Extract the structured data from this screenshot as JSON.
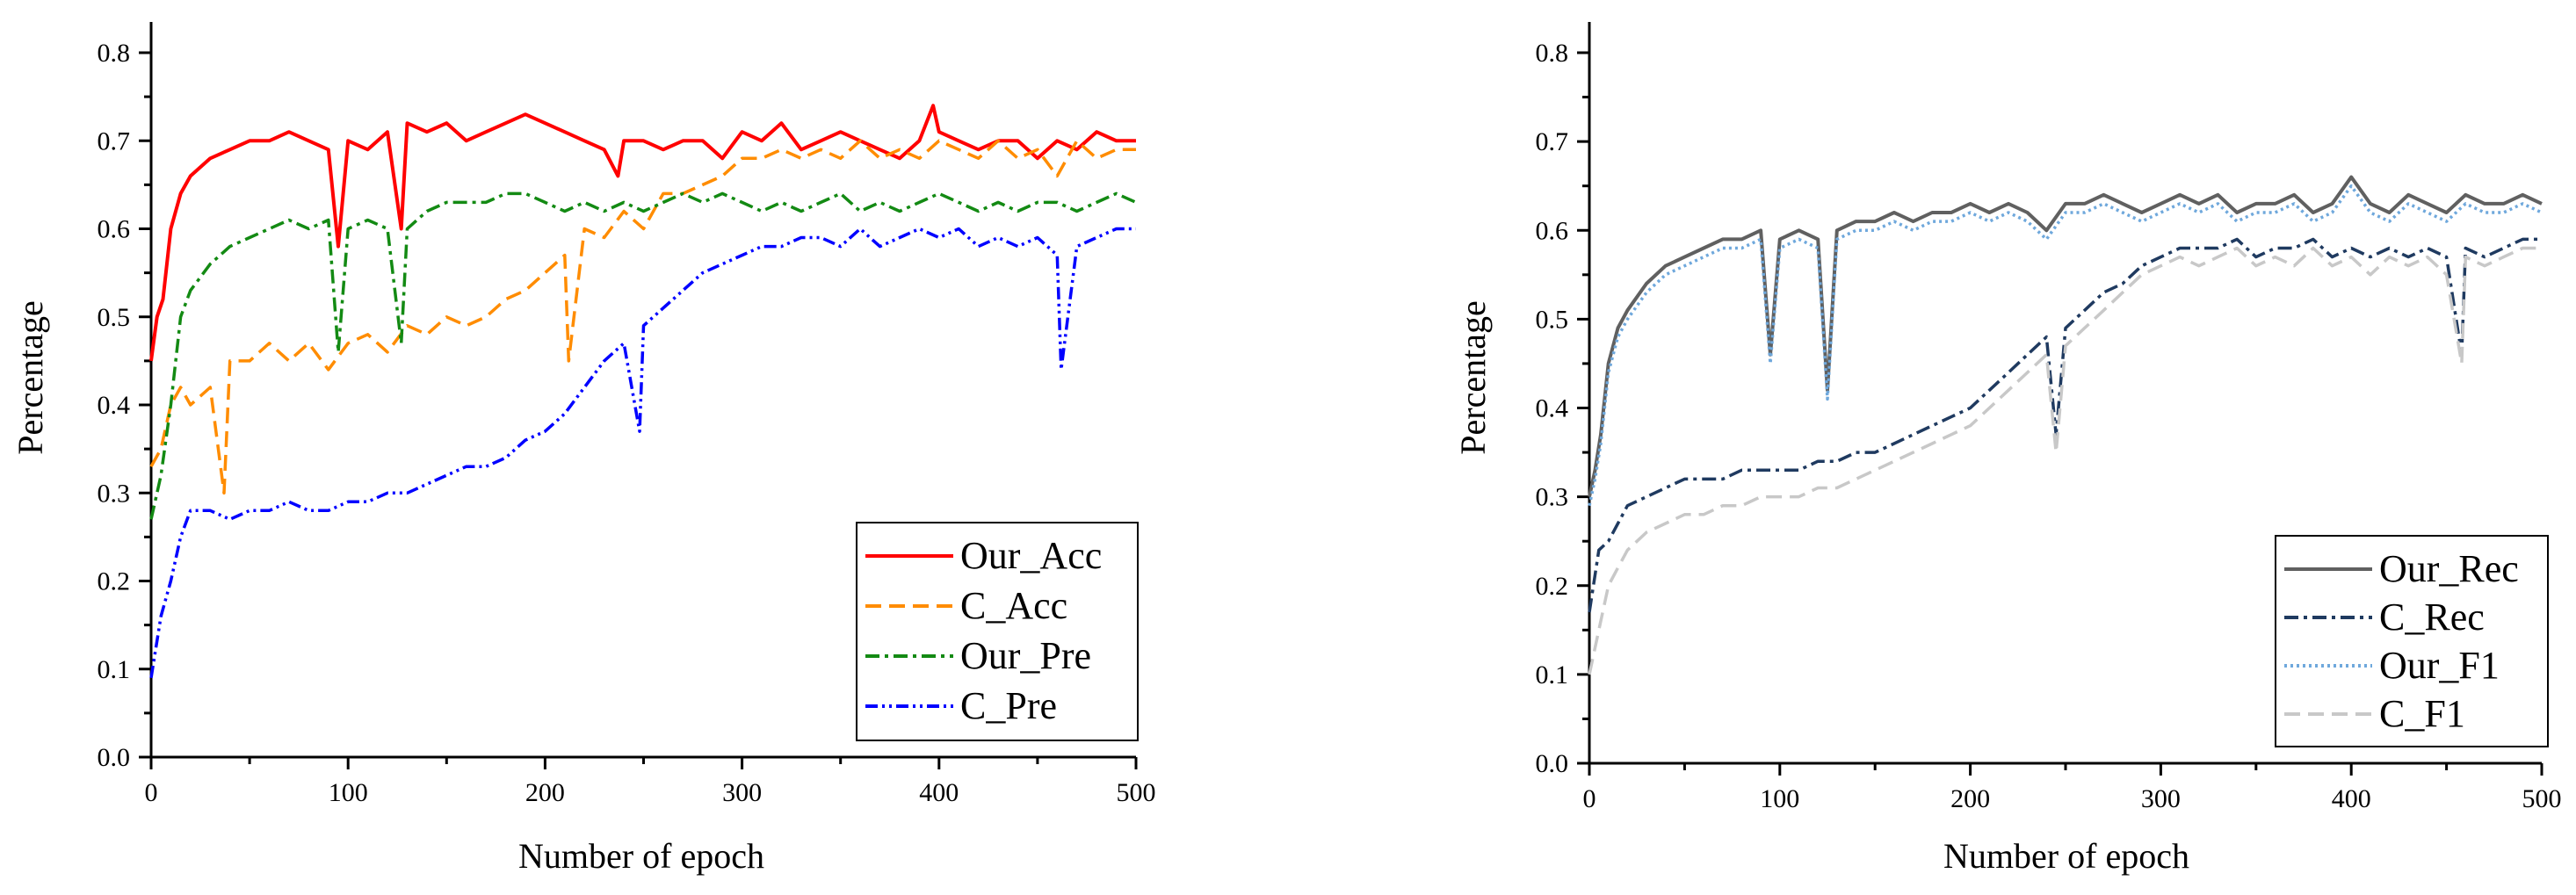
{
  "chart_data": [
    {
      "type": "line",
      "title": "",
      "xlabel": "Number of epoch",
      "ylabel": "Percentage",
      "xlim": [
        0,
        500
      ],
      "ylim": [
        0,
        0.8
      ],
      "xticks": [
        "0",
        "100",
        "200",
        "300",
        "400",
        "500"
      ],
      "yticks": [
        "0.0",
        "0.1",
        "0.2",
        "0.3",
        "0.4",
        "0.5",
        "0.6",
        "0.7",
        "0.8"
      ],
      "grid": false,
      "legend_position": "bottom-right",
      "series": [
        {
          "name": "Our_Acc",
          "color": "#ff0000",
          "style": "solid",
          "x": [
            0,
            3,
            6,
            10,
            15,
            20,
            30,
            40,
            50,
            60,
            70,
            80,
            90,
            95,
            100,
            110,
            120,
            127,
            130,
            140,
            150,
            160,
            170,
            180,
            190,
            200,
            210,
            220,
            230,
            237,
            240,
            250,
            260,
            270,
            280,
            290,
            300,
            310,
            320,
            330,
            340,
            350,
            360,
            370,
            380,
            390,
            397,
            400,
            410,
            420,
            430,
            440,
            450,
            460,
            470,
            480,
            490,
            500
          ],
          "y": [
            0.45,
            0.5,
            0.52,
            0.6,
            0.64,
            0.66,
            0.68,
            0.69,
            0.7,
            0.7,
            0.71,
            0.7,
            0.69,
            0.58,
            0.7,
            0.69,
            0.71,
            0.6,
            0.72,
            0.71,
            0.72,
            0.7,
            0.71,
            0.72,
            0.73,
            0.72,
            0.71,
            0.7,
            0.69,
            0.66,
            0.7,
            0.7,
            0.69,
            0.7,
            0.7,
            0.68,
            0.71,
            0.7,
            0.72,
            0.69,
            0.7,
            0.71,
            0.7,
            0.69,
            0.68,
            0.7,
            0.74,
            0.71,
            0.7,
            0.69,
            0.7,
            0.7,
            0.68,
            0.7,
            0.69,
            0.71,
            0.7,
            0.7
          ]
        },
        {
          "name": "C_Acc",
          "color": "#ff8c00",
          "style": "dashed",
          "x": [
            0,
            5,
            10,
            15,
            20,
            30,
            37,
            40,
            50,
            60,
            70,
            80,
            90,
            100,
            110,
            120,
            130,
            140,
            150,
            160,
            170,
            180,
            190,
            200,
            210,
            212,
            220,
            230,
            240,
            250,
            260,
            270,
            280,
            290,
            300,
            310,
            320,
            330,
            340,
            350,
            360,
            370,
            380,
            390,
            400,
            410,
            420,
            430,
            440,
            450,
            460,
            470,
            480,
            490,
            500
          ],
          "y": [
            0.33,
            0.35,
            0.4,
            0.42,
            0.4,
            0.42,
            0.3,
            0.45,
            0.45,
            0.47,
            0.45,
            0.47,
            0.44,
            0.47,
            0.48,
            0.46,
            0.49,
            0.48,
            0.5,
            0.49,
            0.5,
            0.52,
            0.53,
            0.55,
            0.57,
            0.45,
            0.6,
            0.59,
            0.62,
            0.6,
            0.64,
            0.64,
            0.65,
            0.66,
            0.68,
            0.68,
            0.69,
            0.68,
            0.69,
            0.68,
            0.7,
            0.68,
            0.69,
            0.68,
            0.7,
            0.69,
            0.68,
            0.7,
            0.68,
            0.69,
            0.66,
            0.7,
            0.68,
            0.69,
            0.69
          ]
        },
        {
          "name": "Our_Pre",
          "color": "#138a13",
          "style": "dash-dot",
          "x": [
            0,
            5,
            10,
            15,
            20,
            30,
            40,
            50,
            60,
            70,
            80,
            90,
            95,
            100,
            110,
            120,
            127,
            130,
            140,
            150,
            160,
            170,
            180,
            190,
            200,
            210,
            220,
            230,
            240,
            250,
            260,
            270,
            280,
            290,
            300,
            310,
            320,
            330,
            340,
            350,
            360,
            370,
            380,
            390,
            400,
            410,
            420,
            430,
            440,
            450,
            460,
            470,
            480,
            490,
            500
          ],
          "y": [
            0.27,
            0.32,
            0.4,
            0.5,
            0.53,
            0.56,
            0.58,
            0.59,
            0.6,
            0.61,
            0.6,
            0.61,
            0.46,
            0.6,
            0.61,
            0.6,
            0.47,
            0.6,
            0.62,
            0.63,
            0.63,
            0.63,
            0.64,
            0.64,
            0.63,
            0.62,
            0.63,
            0.62,
            0.63,
            0.62,
            0.63,
            0.64,
            0.63,
            0.64,
            0.63,
            0.62,
            0.63,
            0.62,
            0.63,
            0.64,
            0.62,
            0.63,
            0.62,
            0.63,
            0.64,
            0.63,
            0.62,
            0.63,
            0.62,
            0.63,
            0.63,
            0.62,
            0.63,
            0.64,
            0.63
          ]
        },
        {
          "name": "C_Pre",
          "color": "#0000ff",
          "style": "dash-dot-dot",
          "x": [
            0,
            5,
            10,
            15,
            20,
            30,
            40,
            50,
            60,
            70,
            80,
            90,
            100,
            110,
            120,
            130,
            140,
            150,
            160,
            170,
            180,
            190,
            200,
            210,
            220,
            230,
            240,
            248,
            250,
            260,
            270,
            280,
            290,
            300,
            310,
            320,
            330,
            340,
            350,
            360,
            370,
            380,
            390,
            400,
            410,
            420,
            430,
            440,
            450,
            460,
            462,
            470,
            480,
            490,
            500
          ],
          "y": [
            0.09,
            0.16,
            0.2,
            0.25,
            0.28,
            0.28,
            0.27,
            0.28,
            0.28,
            0.29,
            0.28,
            0.28,
            0.29,
            0.29,
            0.3,
            0.3,
            0.31,
            0.32,
            0.33,
            0.33,
            0.34,
            0.36,
            0.37,
            0.39,
            0.42,
            0.45,
            0.47,
            0.37,
            0.49,
            0.51,
            0.53,
            0.55,
            0.56,
            0.57,
            0.58,
            0.58,
            0.59,
            0.59,
            0.58,
            0.6,
            0.58,
            0.59,
            0.6,
            0.59,
            0.6,
            0.58,
            0.59,
            0.58,
            0.59,
            0.57,
            0.44,
            0.58,
            0.59,
            0.6,
            0.6
          ]
        }
      ]
    },
    {
      "type": "line",
      "title": "",
      "xlabel": "Number of epoch",
      "ylabel": "Percentage",
      "xlim": [
        0,
        500
      ],
      "ylim": [
        0,
        0.8
      ],
      "xticks": [
        "0",
        "100",
        "200",
        "300",
        "400",
        "500"
      ],
      "yticks": [
        "0.0",
        "0.1",
        "0.2",
        "0.3",
        "0.4",
        "0.5",
        "0.6",
        "0.7",
        "0.8"
      ],
      "grid": false,
      "legend_position": "bottom-right",
      "series": [
        {
          "name": "Our_Rec",
          "color": "#606060",
          "style": "solid",
          "x": [
            0,
            3,
            6,
            10,
            15,
            20,
            30,
            40,
            50,
            60,
            70,
            80,
            90,
            95,
            100,
            110,
            120,
            125,
            130,
            140,
            150,
            160,
            170,
            180,
            190,
            200,
            210,
            220,
            230,
            240,
            250,
            260,
            270,
            280,
            290,
            300,
            310,
            320,
            330,
            340,
            350,
            360,
            370,
            380,
            390,
            400,
            410,
            420,
            430,
            440,
            450,
            460,
            470,
            480,
            490,
            500
          ],
          "y": [
            0.3,
            0.33,
            0.37,
            0.45,
            0.49,
            0.51,
            0.54,
            0.56,
            0.57,
            0.58,
            0.59,
            0.59,
            0.6,
            0.46,
            0.59,
            0.6,
            0.59,
            0.42,
            0.6,
            0.61,
            0.61,
            0.62,
            0.61,
            0.62,
            0.62,
            0.63,
            0.62,
            0.63,
            0.62,
            0.6,
            0.63,
            0.63,
            0.64,
            0.63,
            0.62,
            0.63,
            0.64,
            0.63,
            0.64,
            0.62,
            0.63,
            0.63,
            0.64,
            0.62,
            0.63,
            0.66,
            0.63,
            0.62,
            0.64,
            0.63,
            0.62,
            0.64,
            0.63,
            0.63,
            0.64,
            0.63
          ]
        },
        {
          "name": "C_Rec",
          "color": "#1f3a60",
          "style": "dash-dot",
          "x": [
            0,
            5,
            10,
            15,
            20,
            30,
            40,
            50,
            60,
            70,
            80,
            90,
            100,
            110,
            120,
            130,
            140,
            150,
            160,
            170,
            180,
            190,
            200,
            210,
            220,
            230,
            240,
            245,
            250,
            260,
            270,
            280,
            290,
            300,
            310,
            320,
            330,
            340,
            350,
            360,
            370,
            380,
            390,
            400,
            410,
            420,
            430,
            440,
            450,
            458,
            460,
            470,
            480,
            490,
            500
          ],
          "y": [
            0.17,
            0.24,
            0.25,
            0.27,
            0.29,
            0.3,
            0.31,
            0.32,
            0.32,
            0.32,
            0.33,
            0.33,
            0.33,
            0.33,
            0.34,
            0.34,
            0.35,
            0.35,
            0.36,
            0.37,
            0.38,
            0.39,
            0.4,
            0.42,
            0.44,
            0.46,
            0.48,
            0.37,
            0.49,
            0.51,
            0.53,
            0.54,
            0.56,
            0.57,
            0.58,
            0.58,
            0.58,
            0.59,
            0.57,
            0.58,
            0.58,
            0.59,
            0.57,
            0.58,
            0.57,
            0.58,
            0.57,
            0.58,
            0.57,
            0.46,
            0.58,
            0.57,
            0.58,
            0.59,
            0.59
          ]
        },
        {
          "name": "Our_F1",
          "color": "#6fa8dc",
          "style": "dotted",
          "x": [
            0,
            3,
            6,
            10,
            15,
            20,
            30,
            40,
            50,
            60,
            70,
            80,
            90,
            95,
            100,
            110,
            120,
            125,
            130,
            140,
            150,
            160,
            170,
            180,
            190,
            200,
            210,
            220,
            230,
            240,
            250,
            260,
            270,
            280,
            290,
            300,
            310,
            320,
            330,
            340,
            350,
            360,
            370,
            380,
            390,
            400,
            410,
            420,
            430,
            440,
            450,
            460,
            470,
            480,
            490,
            500
          ],
          "y": [
            0.29,
            0.32,
            0.36,
            0.44,
            0.48,
            0.5,
            0.53,
            0.55,
            0.56,
            0.57,
            0.58,
            0.58,
            0.59,
            0.45,
            0.58,
            0.59,
            0.58,
            0.41,
            0.59,
            0.6,
            0.6,
            0.61,
            0.6,
            0.61,
            0.61,
            0.62,
            0.61,
            0.62,
            0.61,
            0.59,
            0.62,
            0.62,
            0.63,
            0.62,
            0.61,
            0.62,
            0.63,
            0.62,
            0.63,
            0.61,
            0.62,
            0.62,
            0.63,
            0.61,
            0.62,
            0.65,
            0.62,
            0.61,
            0.63,
            0.62,
            0.61,
            0.63,
            0.62,
            0.62,
            0.63,
            0.62
          ]
        },
        {
          "name": "C_F1",
          "color": "#c8c8c8",
          "style": "dashed",
          "x": [
            0,
            5,
            10,
            15,
            20,
            30,
            40,
            50,
            60,
            70,
            80,
            90,
            100,
            110,
            120,
            130,
            140,
            150,
            160,
            170,
            180,
            190,
            200,
            210,
            220,
            230,
            240,
            245,
            250,
            260,
            270,
            280,
            290,
            300,
            310,
            320,
            330,
            340,
            350,
            360,
            370,
            380,
            390,
            400,
            410,
            420,
            430,
            440,
            450,
            458,
            460,
            470,
            480,
            490,
            500
          ],
          "y": [
            0.1,
            0.15,
            0.2,
            0.22,
            0.24,
            0.26,
            0.27,
            0.28,
            0.28,
            0.29,
            0.29,
            0.3,
            0.3,
            0.3,
            0.31,
            0.31,
            0.32,
            0.33,
            0.34,
            0.35,
            0.36,
            0.37,
            0.38,
            0.4,
            0.42,
            0.44,
            0.46,
            0.35,
            0.47,
            0.49,
            0.51,
            0.53,
            0.55,
            0.56,
            0.57,
            0.56,
            0.57,
            0.58,
            0.56,
            0.57,
            0.56,
            0.58,
            0.56,
            0.57,
            0.55,
            0.57,
            0.56,
            0.57,
            0.55,
            0.45,
            0.57,
            0.56,
            0.57,
            0.58,
            0.58
          ]
        }
      ]
    }
  ]
}
